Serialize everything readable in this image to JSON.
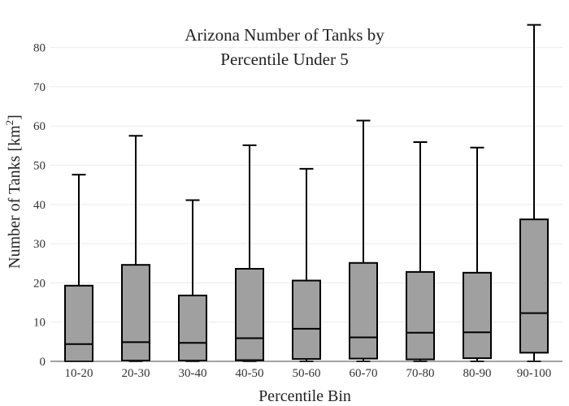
{
  "chart_data": {
    "type": "box",
    "title_line1": "Arizona Number of Tanks by",
    "title_line2": "Percentile Under 5",
    "xlabel": "Percentile Bin",
    "ylabel_main": "Number of Tanks  [km",
    "ylabel_sup": "2",
    "ylabel_close": "]",
    "ylim": [
      0,
      88
    ],
    "yticks": [
      0,
      10,
      20,
      30,
      40,
      50,
      60,
      70,
      80
    ],
    "box_color": "#a0a0a0",
    "grid": true,
    "categories": [
      "10-20",
      "20-30",
      "30-40",
      "40-50",
      "50-60",
      "60-70",
      "70-80",
      "80-90",
      "90-100"
    ],
    "boxes": [
      {
        "min": 0,
        "q1": 0,
        "median": 4.4,
        "q3": 19.3,
        "max": 47.6
      },
      {
        "min": 0,
        "q1": 0.2,
        "median": 4.9,
        "q3": 24.6,
        "max": 57.5
      },
      {
        "min": 0,
        "q1": 0.2,
        "median": 4.7,
        "q3": 16.8,
        "max": 41.1
      },
      {
        "min": 0,
        "q1": 0.3,
        "median": 5.9,
        "q3": 23.6,
        "max": 55.1
      },
      {
        "min": 0,
        "q1": 0.6,
        "median": 8.3,
        "q3": 20.6,
        "max": 49.1
      },
      {
        "min": 0,
        "q1": 0.7,
        "median": 6.1,
        "q3": 25.1,
        "max": 61.4
      },
      {
        "min": 0,
        "q1": 0.5,
        "median": 7.3,
        "q3": 22.8,
        "max": 55.9
      },
      {
        "min": 0,
        "q1": 0.8,
        "median": 7.4,
        "q3": 22.6,
        "max": 54.5
      },
      {
        "min": 0,
        "q1": 2.2,
        "median": 12.3,
        "q3": 36.2,
        "max": 85.8
      }
    ]
  }
}
